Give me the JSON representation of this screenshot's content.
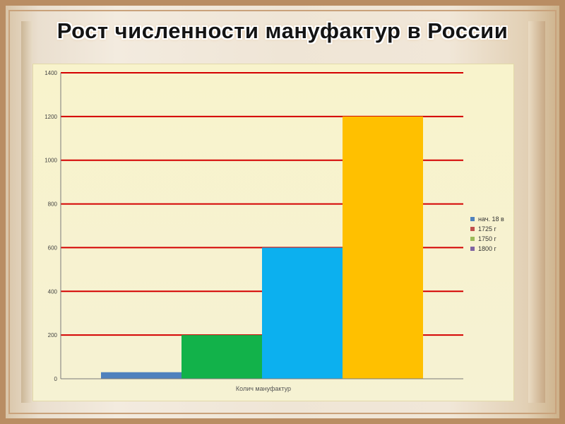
{
  "slide": {
    "title": "Рост численности мануфактур в России"
  },
  "chart_data": {
    "type": "bar",
    "title": "",
    "xlabel": "Колич мануфактур",
    "ylabel": "",
    "ylim": [
      0,
      1400
    ],
    "yticks": [
      0,
      200,
      400,
      600,
      800,
      1000,
      1200,
      1400
    ],
    "grid": true,
    "legend_position": "right",
    "categories": [
      "Колич мануфактур"
    ],
    "series": [
      {
        "name": "нач. 18 в",
        "values": [
          30
        ],
        "legend_color": "#4f81bd",
        "bar_color": "#4f81bd"
      },
      {
        "name": "1725 г",
        "values": [
          200
        ],
        "legend_color": "#c0504d",
        "bar_color": "#12b24a"
      },
      {
        "name": "1750 г",
        "values": [
          600
        ],
        "legend_color": "#9bbb59",
        "bar_color": "#0cb0ef"
      },
      {
        "name": "1800 г",
        "values": [
          1200
        ],
        "legend_color": "#8064a2",
        "bar_color": "#ffc000"
      }
    ],
    "gridline_color": "#d40000",
    "axis_color": "#7a7a7a"
  }
}
